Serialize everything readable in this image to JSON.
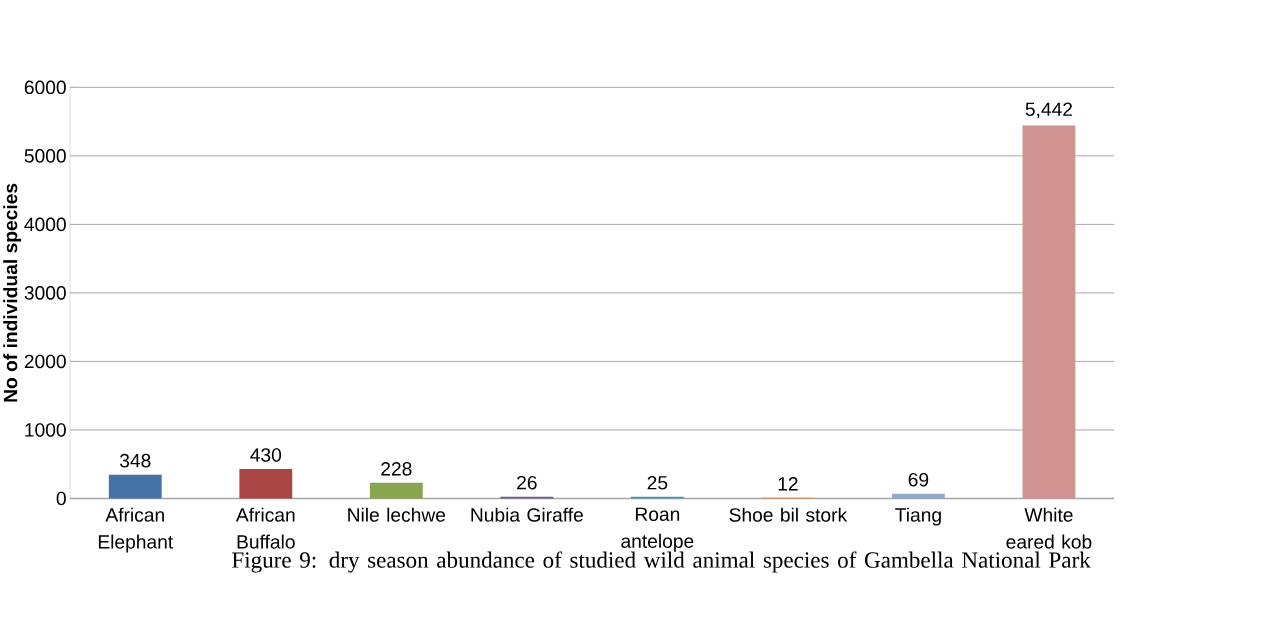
{
  "chart_data": {
    "type": "bar",
    "title": "Figure  9:  dry season abundance of studied wild animal species of Gambella National Park",
    "ylabel": "No of individual species",
    "categories": [
      "African Elephant",
      "African Buffalo",
      "Nile lechwe",
      "Nubia Giraffe",
      "Roan antelope",
      "Shoe bil stork",
      "Tiang",
      "White eared kob"
    ],
    "values": [
      348,
      430,
      228,
      26,
      25,
      12,
      69,
      5442
    ],
    "value_labels": [
      "348",
      "430",
      "228",
      "26",
      "25",
      "12",
      "69",
      "5,442"
    ],
    "colors": [
      "#4572a7",
      "#aa4643",
      "#89a54e",
      "#71588f",
      "#4198af",
      "#db843d",
      "#93a9cf",
      "#d19392"
    ],
    "ylim": [
      0,
      6000
    ],
    "yticks": [
      0,
      1000,
      2000,
      3000,
      4000,
      5000,
      6000
    ],
    "grid": "y"
  }
}
